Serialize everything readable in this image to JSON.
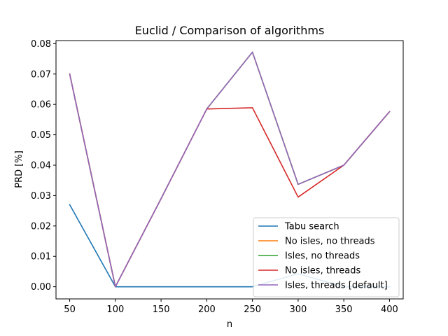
{
  "chart_data": {
    "type": "line",
    "title": "Euclid / Comparison of algorithms",
    "xlabel": "n",
    "ylabel": "PRD [%]",
    "x": [
      50,
      100,
      150,
      200,
      250,
      300,
      350,
      400
    ],
    "xlim": [
      35,
      415
    ],
    "ylim": [
      -0.004,
      0.081
    ],
    "xticks": [
      50,
      100,
      150,
      200,
      250,
      300,
      350,
      400
    ],
    "yticks": [
      0.0,
      0.01,
      0.02,
      0.03,
      0.04,
      0.05,
      0.06,
      0.07,
      0.08
    ],
    "ytick_labels": [
      "0.00",
      "0.01",
      "0.02",
      "0.03",
      "0.04",
      "0.05",
      "0.06",
      "0.07",
      "0.08"
    ],
    "grid": false,
    "legend_position": "lower right",
    "series": [
      {
        "name": "Tabu search",
        "color": "#1f77b4",
        "values": [
          0.027,
          0.0,
          0.0,
          0.0,
          0.0,
          0.0043,
          0.0,
          0.0
        ]
      },
      {
        "name": "No isles, no threads",
        "color": "#ff7f0e",
        "values": [
          0.07,
          0.0,
          0.029,
          0.0585,
          0.0772,
          0.0337,
          0.04,
          0.0576
        ]
      },
      {
        "name": "Isles, no threads",
        "color": "#2ca02c",
        "values": [
          0.07,
          0.0,
          0.029,
          0.0585,
          0.0772,
          0.0337,
          0.04,
          0.0576
        ]
      },
      {
        "name": "No isles, threads",
        "color": "#d62728",
        "values": [
          0.07,
          0.0,
          0.029,
          0.0585,
          0.0589,
          0.0295,
          0.04,
          0.0576
        ]
      },
      {
        "name": "Isles, threads [default]",
        "color": "#9467bd",
        "values": [
          0.07,
          0.0,
          0.029,
          0.0585,
          0.0772,
          0.0337,
          0.04,
          0.0576
        ]
      }
    ]
  }
}
